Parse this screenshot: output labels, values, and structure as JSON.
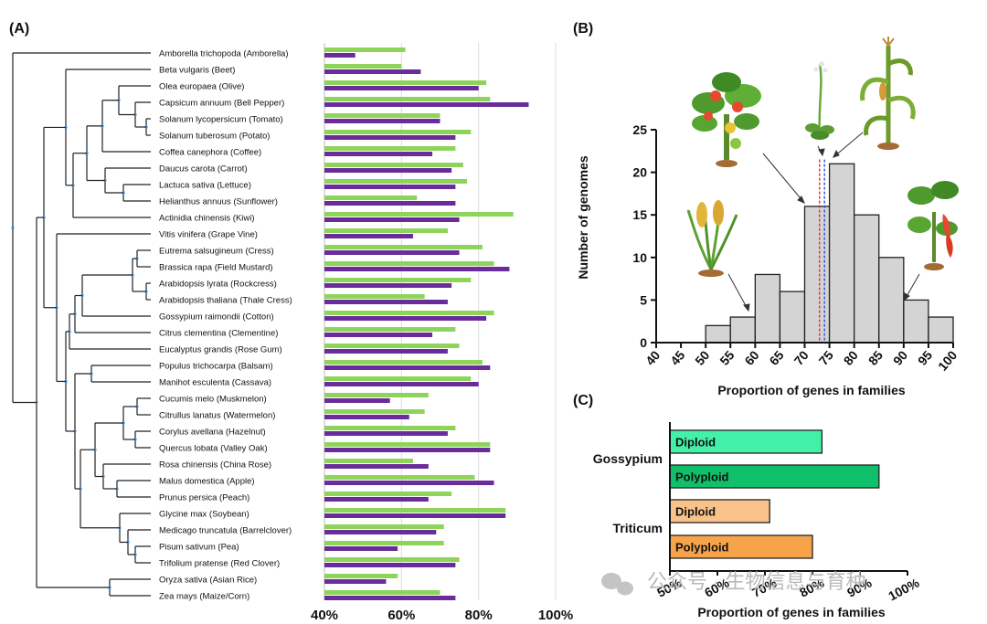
{
  "panels": {
    "a": "(A)",
    "b": "(B)",
    "c": "(C)"
  },
  "colors": {
    "green": "#8ed45a",
    "purple": "#6a2c9a",
    "hist_fill": "#d4d4d4",
    "c_diploid_gossypium": "#43f0a8",
    "c_polyploid_gossypium": "#10bf6a",
    "c_diploid_triticum": "#f9c28a",
    "c_polyploid_triticum": "#f6a34a"
  },
  "chart_data": [
    {
      "type": "bar",
      "orientation": "horizontal",
      "categories": [
        "Amborella trichopoda (Amborella)",
        "Beta vulgaris (Beet)",
        "Olea europaea (Olive)",
        "Capsicum annuum (Bell Pepper)",
        "Solanum lycopersicum (Tomato)",
        "Solanum tuberosum (Potato)",
        "Coffea canephora (Coffee)",
        "Daucus carota (Carrot)",
        "Lactuca sativa (Lettuce)",
        "Helianthus annuus (Sunflower)",
        "Actinidia chinensis (Kiwi)",
        "Vitis vinifera (Grape Vine)",
        "Eutrema salsugineum (Cress)",
        "Brassica rapa (Field Mustard)",
        "Arabidopsis lyrata (Rockcress)",
        "Arabidopsis thaliana (Thale Cress)",
        "Gossypium raimondii (Cotton)",
        "Citrus clementina (Clementine)",
        "Eucalyptus grandis (Rose Gum)",
        "Populus trichocarpa (Balsam)",
        "Manihot esculenta (Cassava)",
        "Cucumis melo (Muskmelon)",
        "Citrullus lanatus (Watermelon)",
        "Corylus avellana (Hazelnut)",
        "Quercus lobata (Valley Oak)",
        "Rosa chinensis (China Rose)",
        "Malus domestica (Apple)",
        "Prunus persica (Peach)",
        "Glycine max (Soybean)",
        "Medicago truncatula (Barrelclover)",
        "Pisum sativum (Pea)",
        "Trifolium pratense (Red Clover)",
        "Oryza sativa (Asian Rice)",
        "Zea mays (Maize/Corn)"
      ],
      "series": [
        {
          "values": [
            61,
            60,
            82,
            83,
            70,
            78,
            74,
            76,
            77,
            64,
            89,
            72,
            81,
            84,
            78,
            66,
            84,
            74,
            75,
            81,
            78,
            67,
            66,
            74,
            83,
            63,
            79,
            73,
            87,
            71,
            71,
            75,
            59,
            70
          ]
        },
        {
          "values": [
            48,
            65,
            80,
            93,
            70,
            74,
            68,
            73,
            74,
            74,
            75,
            63,
            75,
            88,
            73,
            72,
            82,
            68,
            72,
            83,
            80,
            57,
            62,
            72,
            83,
            67,
            84,
            67,
            87,
            69,
            59,
            74,
            56,
            74
          ]
        }
      ],
      "xtick_labels": [
        "40%",
        "60%",
        "80%",
        "100%"
      ],
      "xlim": [
        40,
        100
      ],
      "grid": true
    },
    {
      "type": "bar",
      "subtype": "histogram",
      "xlabel": "Proportion of genes in families",
      "ylabel": "Number of genomes",
      "bins": [
        [
          50,
          55
        ],
        [
          55,
          60
        ],
        [
          60,
          65
        ],
        [
          65,
          70
        ],
        [
          70,
          75
        ],
        [
          75,
          80
        ],
        [
          80,
          85
        ],
        [
          85,
          90
        ],
        [
          90,
          95
        ],
        [
          95,
          100
        ]
      ],
      "values": [
        2,
        3,
        8,
        6,
        16,
        21,
        15,
        10,
        5,
        3
      ],
      "xticks": [
        "40",
        "45",
        "50",
        "55",
        "60",
        "65",
        "70",
        "75",
        "80",
        "85",
        "90",
        "95",
        "100"
      ],
      "yticks": [
        "0",
        "5",
        "10",
        "15",
        "20",
        "25"
      ],
      "xlim": [
        40,
        100
      ],
      "ylim": [
        0,
        25
      ],
      "reference_lines": [
        73,
        74
      ]
    },
    {
      "type": "bar",
      "orientation": "horizontal",
      "groups": [
        {
          "name": "Gossypium",
          "bars": [
            {
              "label": "Diploid",
              "value": 82
            },
            {
              "label": "Polyploid",
              "value": 94
            }
          ]
        },
        {
          "name": "Triticum",
          "bars": [
            {
              "label": "Diploid",
              "value": 71
            },
            {
              "label": "Polyploid",
              "value": 80
            }
          ]
        }
      ],
      "xlabel": "Proportion of genes in families",
      "xticks": [
        "50%",
        "60%",
        "70%",
        "80%",
        "90%",
        "100%"
      ],
      "xlim": [
        50,
        100
      ]
    }
  ],
  "watermark": "公众号 · 生物信息与育种"
}
